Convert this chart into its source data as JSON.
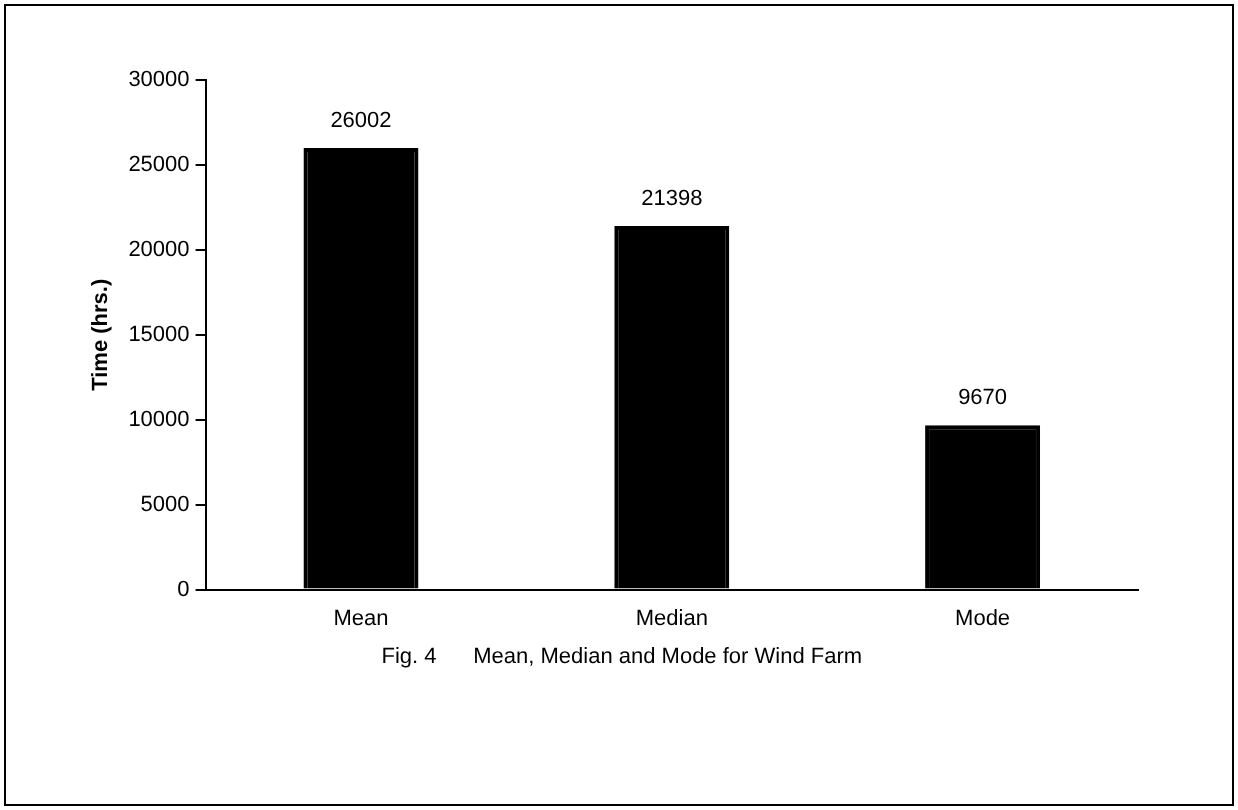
{
  "chart_data": {
    "type": "bar",
    "ylabel": "Time (hrs.)",
    "annotations": [
      "Fig. 4      Mean, Median and Mode for Wind Farm"
    ],
    "categories": [
      "Mean",
      "Median",
      "Mode"
    ],
    "values": [
      26002,
      21398,
      9670
    ],
    "color": "#000000",
    "ylim": [
      0,
      30000
    ],
    "yticks": [
      0,
      5000,
      10000,
      15000,
      20000,
      25000,
      30000
    ],
    "data_labels": true
  }
}
